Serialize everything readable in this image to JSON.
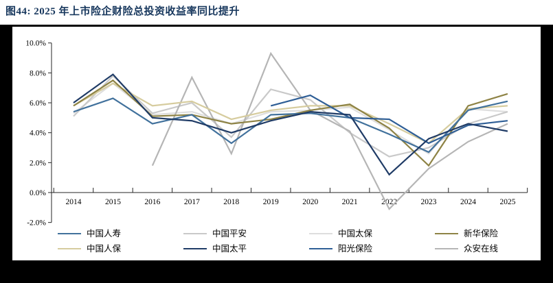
{
  "page": {
    "title": "图44:  2025 年上市险企财险总投资收益率同比提升",
    "title_color": "#17375d",
    "frame_color": "#000000",
    "panel_color": "#ffffff"
  },
  "chart_data": {
    "type": "line",
    "title": "2025 年上市险企财险总投资收益率同比提升",
    "categories": [
      "2014",
      "2015",
      "2016",
      "2017",
      "2018",
      "2019",
      "2020",
      "2021",
      "2022",
      "2023",
      "2024",
      "2025"
    ],
    "xlabel": "",
    "ylabel": "",
    "y_axis": {
      "min": -2.0,
      "max": 10.0,
      "step": 2.0,
      "tick_labels": [
        "10.0%",
        "8.0%",
        "6.0%",
        "4.0%",
        "2.0%",
        "0.0%",
        "-2.0%"
      ]
    },
    "grid": false,
    "legend_position": "bottom",
    "series": [
      {
        "name": "中国人寿",
        "color": "#41719c",
        "values": [
          5.4,
          6.3,
          4.6,
          5.2,
          3.3,
          5.2,
          5.3,
          5.0,
          3.9,
          2.7,
          5.5,
          6.1
        ]
      },
      {
        "name": "中国平安",
        "color": "#c9c9c9",
        "values": [
          5.1,
          7.8,
          5.3,
          6.0,
          3.7,
          6.9,
          6.2,
          4.0,
          2.4,
          3.0,
          4.6,
          5.4
        ]
      },
      {
        "name": "中国太保",
        "color": "#dedede",
        "values": [
          5.3,
          7.3,
          5.2,
          5.4,
          4.6,
          5.4,
          5.5,
          5.7,
          4.2,
          2.6,
          5.6,
          5.4
        ]
      },
      {
        "name": "新华保险",
        "color": "#8e8345",
        "values": [
          5.8,
          7.5,
          5.1,
          5.2,
          4.6,
          4.9,
          5.5,
          5.9,
          4.3,
          1.8,
          5.8,
          6.6
        ]
      },
      {
        "name": "中国人保",
        "color": "#d6cc9e",
        "values": [
          5.8,
          7.3,
          5.8,
          6.1,
          4.9,
          5.5,
          5.8,
          5.8,
          4.6,
          3.3,
          5.6,
          5.8
        ]
      },
      {
        "name": "中国太平",
        "color": "#1f3b66",
        "values": [
          6.0,
          7.9,
          5.0,
          4.8,
          4.0,
          4.8,
          5.4,
          5.2,
          1.2,
          3.6,
          4.6,
          4.1
        ]
      },
      {
        "name": "阳光保险",
        "color": "#2e5e96",
        "values": [
          null,
          null,
          null,
          null,
          null,
          5.8,
          6.5,
          5.0,
          4.9,
          3.3,
          4.5,
          4.8
        ]
      },
      {
        "name": "众安在线",
        "color": "#b5b5b5",
        "values": [
          null,
          null,
          1.8,
          7.7,
          2.6,
          9.3,
          5.5,
          4.1,
          -1.1,
          1.6,
          3.4,
          4.6
        ]
      }
    ],
    "z_order": [
      "中国太保",
      "中国平安",
      "众安在线",
      "中国人保",
      "新华保险",
      "中国人寿",
      "阳光保险",
      "中国太平"
    ],
    "legend_rows": [
      [
        "中国人寿",
        "中国平安",
        "中国太保",
        "新华保险"
      ],
      [
        "中国人保",
        "中国太平",
        "阳光保险",
        "众安在线"
      ]
    ]
  }
}
